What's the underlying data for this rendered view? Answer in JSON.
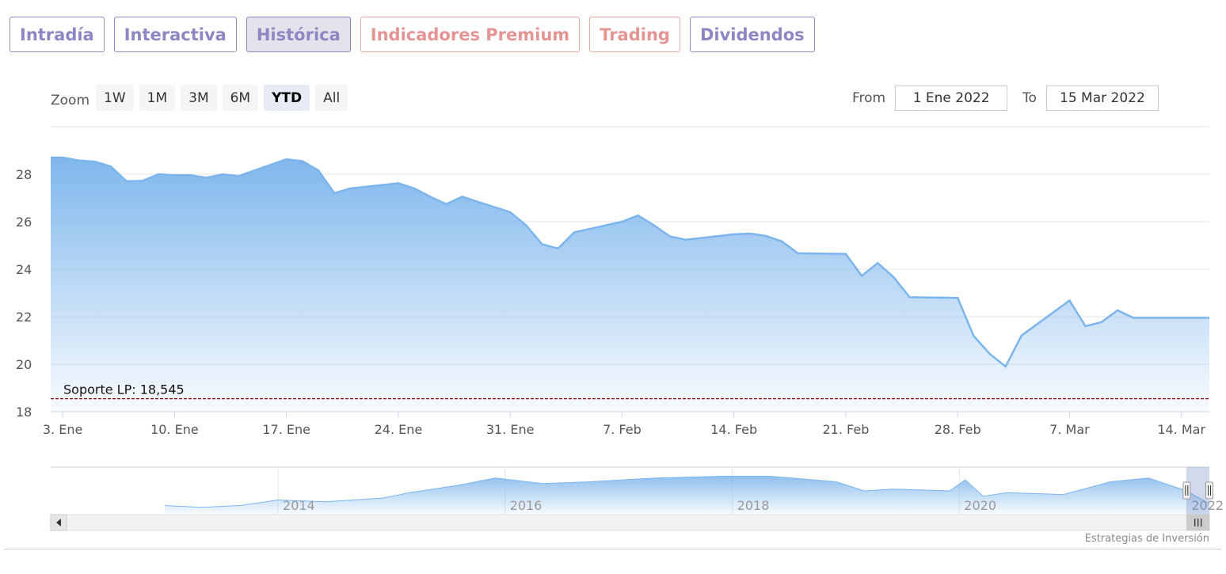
{
  "tabs": [
    {
      "label": "Intradía",
      "active": false,
      "style": "normal"
    },
    {
      "label": "Interactiva",
      "active": false,
      "style": "normal"
    },
    {
      "label": "Histórica",
      "active": true,
      "style": "normal"
    },
    {
      "label": "Indicadores Premium",
      "active": false,
      "style": "premium"
    },
    {
      "label": "Trading",
      "active": false,
      "style": "premium"
    },
    {
      "label": "Dividendos",
      "active": false,
      "style": "normal"
    }
  ],
  "zoom": {
    "label": "Zoom",
    "buttons": [
      {
        "label": "1W",
        "selected": false
      },
      {
        "label": "1M",
        "selected": false
      },
      {
        "label": "3M",
        "selected": false
      },
      {
        "label": "6M",
        "selected": false
      },
      {
        "label": "YTD",
        "selected": true
      },
      {
        "label": "All",
        "selected": false
      }
    ]
  },
  "range": {
    "from_label": "From",
    "from_value": "1 Ene 2022",
    "to_label": "To",
    "to_value": "15 Mar 2022"
  },
  "credit": "Estrategias de Inversión",
  "colors": {
    "line": "#7cb5ec",
    "support": "#8b0000",
    "tab_text": "#8c87c2",
    "premium_text": "#e49593",
    "navigator_mask": "rgba(102,133,194,0.3)"
  },
  "icons": {
    "scroll_left": "triangle-left",
    "scroll_right": "triangle-right",
    "scroll_grip": "grip-lines",
    "handle": "navigator-handle"
  },
  "chart_data": {
    "type": "area",
    "title": "",
    "xlabel": "",
    "ylabel": "",
    "ylim": [
      18,
      30
    ],
    "y_ticks": [
      18,
      20,
      22,
      24,
      26,
      28
    ],
    "grid": true,
    "x_ticks": [
      {
        "date": "2022-01-03",
        "label": "3. Ene"
      },
      {
        "date": "2022-01-10",
        "label": "10. Ene"
      },
      {
        "date": "2022-01-17",
        "label": "17. Ene"
      },
      {
        "date": "2022-01-24",
        "label": "24. Ene"
      },
      {
        "date": "2022-01-31",
        "label": "31. Ene"
      },
      {
        "date": "2022-02-07",
        "label": "7. Feb"
      },
      {
        "date": "2022-02-14",
        "label": "14. Feb"
      },
      {
        "date": "2022-02-21",
        "label": "21. Feb"
      },
      {
        "date": "2022-02-28",
        "label": "28. Feb"
      },
      {
        "date": "2022-03-07",
        "label": "7. Mar"
      },
      {
        "date": "2022-03-14",
        "label": "14. Mar"
      }
    ],
    "xlim": [
      "2022-01-02 06:00",
      "2022-03-15 18:00"
    ],
    "series": [
      {
        "points": [
          [
            "2022-01-03",
            28.7
          ],
          [
            "2022-01-04",
            28.58
          ],
          [
            "2022-01-05",
            28.53
          ],
          [
            "2022-01-06",
            28.33
          ],
          [
            "2022-01-07",
            27.7
          ],
          [
            "2022-01-08",
            27.72
          ],
          [
            "2022-01-09",
            28.0
          ],
          [
            "2022-01-10",
            27.96
          ],
          [
            "2022-01-11",
            27.96
          ],
          [
            "2022-01-12",
            27.85
          ],
          [
            "2022-01-13",
            27.99
          ],
          [
            "2022-01-14",
            27.92
          ],
          [
            "2022-01-17",
            28.63
          ],
          [
            "2022-01-18",
            28.55
          ],
          [
            "2022-01-19",
            28.16
          ],
          [
            "2022-01-20",
            27.2
          ],
          [
            "2022-01-21",
            27.4
          ],
          [
            "2022-01-24",
            27.62
          ],
          [
            "2022-01-25",
            27.4
          ],
          [
            "2022-01-26",
            27.05
          ],
          [
            "2022-01-27",
            26.74
          ],
          [
            "2022-01-28",
            27.05
          ],
          [
            "2022-01-31",
            26.4
          ],
          [
            "2022-02-01",
            25.85
          ],
          [
            "2022-02-02",
            25.05
          ],
          [
            "2022-02-03",
            24.87
          ],
          [
            "2022-02-04",
            25.55
          ],
          [
            "2022-02-07",
            26.0
          ],
          [
            "2022-02-08",
            26.26
          ],
          [
            "2022-02-09",
            25.85
          ],
          [
            "2022-02-10",
            25.38
          ],
          [
            "2022-02-11",
            25.24
          ],
          [
            "2022-02-14",
            25.47
          ],
          [
            "2022-02-15",
            25.5
          ],
          [
            "2022-02-16",
            25.4
          ],
          [
            "2022-02-17",
            25.17
          ],
          [
            "2022-02-18",
            24.67
          ],
          [
            "2022-02-21",
            24.64
          ],
          [
            "2022-02-22",
            23.72
          ],
          [
            "2022-02-23",
            24.26
          ],
          [
            "2022-02-24",
            23.66
          ],
          [
            "2022-02-25",
            22.82
          ],
          [
            "2022-02-28",
            22.79
          ],
          [
            "2022-03-01",
            21.19
          ],
          [
            "2022-03-02",
            20.44
          ],
          [
            "2022-03-03",
            19.9
          ],
          [
            "2022-03-04",
            21.21
          ],
          [
            "2022-03-07",
            22.68
          ],
          [
            "2022-03-08",
            21.6
          ],
          [
            "2022-03-09",
            21.77
          ],
          [
            "2022-03-10",
            22.27
          ],
          [
            "2022-03-11",
            21.95
          ]
        ]
      }
    ],
    "annotations": [
      {
        "label": "Soporte LP: 18,545",
        "value": 18.545,
        "style": "dashed"
      }
    ],
    "navigator": {
      "x_labels": [
        "2014",
        "2016",
        "2018",
        "2020",
        "2022"
      ],
      "x_label_dates": [
        "2014-01-01",
        "2016-01-01",
        "2018-01-01",
        "2020-01-01",
        "2022-01-01"
      ],
      "xlim": [
        "2012-01-01",
        "2022-03-15"
      ],
      "ylim": [
        16,
        42
      ],
      "series": [
        [
          "2013-01-01",
          21
        ],
        [
          "2013-05-01",
          20
        ],
        [
          "2013-09-01",
          21
        ],
        [
          "2014-01-01",
          24
        ],
        [
          "2014-06-01",
          23
        ],
        [
          "2014-12-01",
          25
        ],
        [
          "2015-03-01",
          28
        ],
        [
          "2015-08-01",
          32
        ],
        [
          "2015-12-01",
          36
        ],
        [
          "2016-05-01",
          33
        ],
        [
          "2016-10-01",
          34
        ],
        [
          "2017-05-01",
          36
        ],
        [
          "2017-12-01",
          37
        ],
        [
          "2018-05-01",
          37
        ],
        [
          "2018-12-01",
          34
        ],
        [
          "2019-03-01",
          29
        ],
        [
          "2019-06-01",
          30
        ],
        [
          "2019-12-01",
          29
        ],
        [
          "2020-01-20",
          35
        ],
        [
          "2020-03-18",
          26
        ],
        [
          "2020-06-01",
          28
        ],
        [
          "2020-12-01",
          27
        ],
        [
          "2021-05-01",
          34
        ],
        [
          "2021-09-01",
          36
        ],
        [
          "2021-12-31",
          29
        ],
        [
          "2022-03-15",
          22
        ]
      ],
      "selection": [
        "2022-01-01",
        "2022-03-15"
      ]
    }
  }
}
